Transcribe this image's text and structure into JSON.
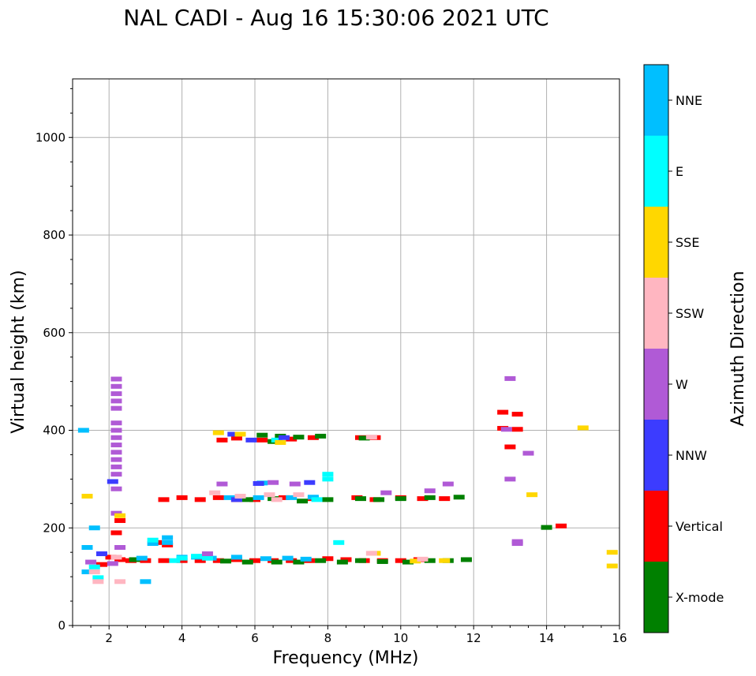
{
  "chart_data": {
    "type": "scatter",
    "title": "NAL CADI - Aug 16 15:30:06 2021 UTC",
    "xlabel": "Frequency (MHz)",
    "ylabel": "Virtual height (km)",
    "xlim": [
      1,
      16
    ],
    "ylim": [
      0,
      1120
    ],
    "x_ticks": [
      2,
      4,
      6,
      8,
      10,
      12,
      14,
      16
    ],
    "y_ticks": [
      0,
      200,
      400,
      600,
      800,
      1000
    ],
    "grid": true,
    "colorbar": {
      "title": "Azimuth Direction",
      "categories": [
        {
          "name": "X-mode",
          "color": "#008000"
        },
        {
          "name": "Vertical",
          "color": "#ff0000"
        },
        {
          "name": "NNW",
          "color": "#3c3cff"
        },
        {
          "name": "W",
          "color": "#b05ad6"
        },
        {
          "name": "SSW",
          "color": "#ffb6c1"
        },
        {
          "name": "SSE",
          "color": "#ffd700"
        },
        {
          "name": "E",
          "color": "#00ffff"
        },
        {
          "name": "NNE",
          "color": "#00bfff"
        }
      ]
    },
    "series": [
      {
        "name": "Vertical",
        "points": [
          [
            1.8,
            125
          ],
          [
            2.05,
            140
          ],
          [
            2.3,
            135
          ],
          [
            2.6,
            133
          ],
          [
            3.0,
            133
          ],
          [
            3.5,
            133
          ],
          [
            4.0,
            133
          ],
          [
            4.5,
            133
          ],
          [
            5.0,
            133
          ],
          [
            5.5,
            135
          ],
          [
            6.0,
            133
          ],
          [
            6.5,
            133
          ],
          [
            7.0,
            133
          ],
          [
            7.5,
            133
          ],
          [
            8.0,
            137
          ],
          [
            8.5,
            135
          ],
          [
            9.0,
            133
          ],
          [
            9.5,
            133
          ],
          [
            10.0,
            133
          ],
          [
            10.5,
            135
          ],
          [
            3.3,
            170
          ],
          [
            3.6,
            165
          ],
          [
            3.5,
            258
          ],
          [
            4.0,
            262
          ],
          [
            4.5,
            258
          ],
          [
            5.0,
            262
          ],
          [
            5.5,
            258
          ],
          [
            6.0,
            258
          ],
          [
            6.8,
            262
          ],
          [
            7.6,
            260
          ],
          [
            8.8,
            262
          ],
          [
            9.3,
            258
          ],
          [
            10.0,
            262
          ],
          [
            10.6,
            260
          ],
          [
            11.2,
            260
          ],
          [
            5.1,
            380
          ],
          [
            5.5,
            384
          ],
          [
            6.2,
            380
          ],
          [
            7.0,
            382
          ],
          [
            7.6,
            385
          ],
          [
            8.9,
            385
          ],
          [
            9.3,
            385
          ],
          [
            12.8,
            437
          ],
          [
            13.2,
            433
          ],
          [
            12.8,
            404
          ],
          [
            13.2,
            402
          ],
          [
            13.0,
            366
          ],
          [
            14.4,
            204
          ],
          [
            2.2,
            190
          ],
          [
            2.3,
            215
          ]
        ]
      },
      {
        "name": "X-mode",
        "points": [
          [
            5.2,
            132
          ],
          [
            5.8,
            130
          ],
          [
            6.6,
            130
          ],
          [
            7.2,
            130
          ],
          [
            7.8,
            133
          ],
          [
            8.4,
            130
          ],
          [
            8.9,
            133
          ],
          [
            9.5,
            131
          ],
          [
            10.2,
            130
          ],
          [
            10.8,
            133
          ],
          [
            11.3,
            133
          ],
          [
            11.8,
            135
          ],
          [
            5.8,
            258
          ],
          [
            6.5,
            260
          ],
          [
            7.3,
            255
          ],
          [
            8.0,
            258
          ],
          [
            8.9,
            260
          ],
          [
            9.4,
            258
          ],
          [
            10.0,
            260
          ],
          [
            10.8,
            262
          ],
          [
            11.6,
            263
          ],
          [
            6.2,
            390
          ],
          [
            6.7,
            388
          ],
          [
            7.2,
            386
          ],
          [
            7.8,
            388
          ],
          [
            9.0,
            384
          ],
          [
            6.5,
            377
          ],
          [
            14.0,
            201
          ],
          [
            2.7,
            135
          ]
        ]
      },
      {
        "name": "NNE",
        "points": [
          [
            3.2,
            168
          ],
          [
            3.6,
            180
          ],
          [
            3.6,
            170
          ],
          [
            3.0,
            90
          ],
          [
            4.0,
            140
          ],
          [
            4.4,
            140
          ],
          [
            4.8,
            138
          ],
          [
            5.5,
            140
          ],
          [
            6.3,
            137
          ],
          [
            6.9,
            138
          ],
          [
            7.4,
            136
          ],
          [
            1.6,
            200
          ],
          [
            5.3,
            262
          ],
          [
            6.1,
            262
          ],
          [
            7.0,
            262
          ],
          [
            7.6,
            263
          ],
          [
            6.2,
            292
          ],
          [
            2.9,
            138
          ],
          [
            1.4,
            110
          ],
          [
            1.4,
            160
          ],
          [
            1.3,
            400
          ]
        ]
      },
      {
        "name": "E",
        "points": [
          [
            3.2,
            175
          ],
          [
            4.0,
            138
          ],
          [
            4.4,
            142
          ],
          [
            3.8,
            133
          ],
          [
            8.3,
            170
          ],
          [
            7.7,
            258
          ],
          [
            8.0,
            300
          ],
          [
            8.0,
            310
          ],
          [
            6.6,
            380
          ],
          [
            1.7,
            98
          ],
          [
            1.6,
            120
          ],
          [
            4.7,
            138
          ]
        ]
      },
      {
        "name": "W",
        "points": [
          [
            2.2,
            505
          ],
          [
            2.2,
            490
          ],
          [
            2.2,
            475
          ],
          [
            2.2,
            460
          ],
          [
            2.2,
            445
          ],
          [
            2.2,
            415
          ],
          [
            2.2,
            400
          ],
          [
            2.2,
            385
          ],
          [
            2.2,
            370
          ],
          [
            2.2,
            355
          ],
          [
            2.2,
            340
          ],
          [
            2.2,
            325
          ],
          [
            2.2,
            310
          ],
          [
            2.2,
            280
          ],
          [
            2.2,
            230
          ],
          [
            13.2,
            172
          ],
          [
            13.2,
            168
          ],
          [
            13.0,
            506
          ],
          [
            13.0,
            300
          ],
          [
            13.5,
            353
          ],
          [
            12.9,
            402
          ],
          [
            11.3,
            290
          ],
          [
            10.8,
            276
          ],
          [
            9.6,
            272
          ],
          [
            6.5,
            293
          ],
          [
            7.1,
            290
          ],
          [
            5.1,
            290
          ],
          [
            4.7,
            147
          ],
          [
            2.1,
            127
          ],
          [
            2.3,
            160
          ],
          [
            1.5,
            130
          ]
        ]
      },
      {
        "name": "NNW",
        "points": [
          [
            6.1,
            291
          ],
          [
            7.5,
            293
          ],
          [
            5.5,
            258
          ],
          [
            5.9,
            380
          ],
          [
            6.8,
            385
          ],
          [
            1.8,
            147
          ],
          [
            2.1,
            295
          ],
          [
            5.4,
            392
          ]
        ]
      },
      {
        "name": "SSE",
        "points": [
          [
            15.0,
            405
          ],
          [
            15.8,
            150
          ],
          [
            15.8,
            122
          ],
          [
            13.6,
            268
          ],
          [
            9.3,
            148
          ],
          [
            10.4,
            132
          ],
          [
            11.2,
            133
          ],
          [
            5.6,
            392
          ],
          [
            5.0,
            395
          ],
          [
            2.3,
            225
          ],
          [
            1.4,
            265
          ],
          [
            6.7,
            375
          ]
        ]
      },
      {
        "name": "SSW",
        "points": [
          [
            4.9,
            272
          ],
          [
            5.6,
            265
          ],
          [
            6.4,
            268
          ],
          [
            7.2,
            268
          ],
          [
            9.2,
            386
          ],
          [
            9.2,
            148
          ],
          [
            10.6,
            136
          ],
          [
            1.6,
            110
          ],
          [
            1.7,
            90
          ],
          [
            2.2,
            140
          ],
          [
            2.3,
            90
          ],
          [
            6.6,
            258
          ]
        ]
      }
    ]
  }
}
